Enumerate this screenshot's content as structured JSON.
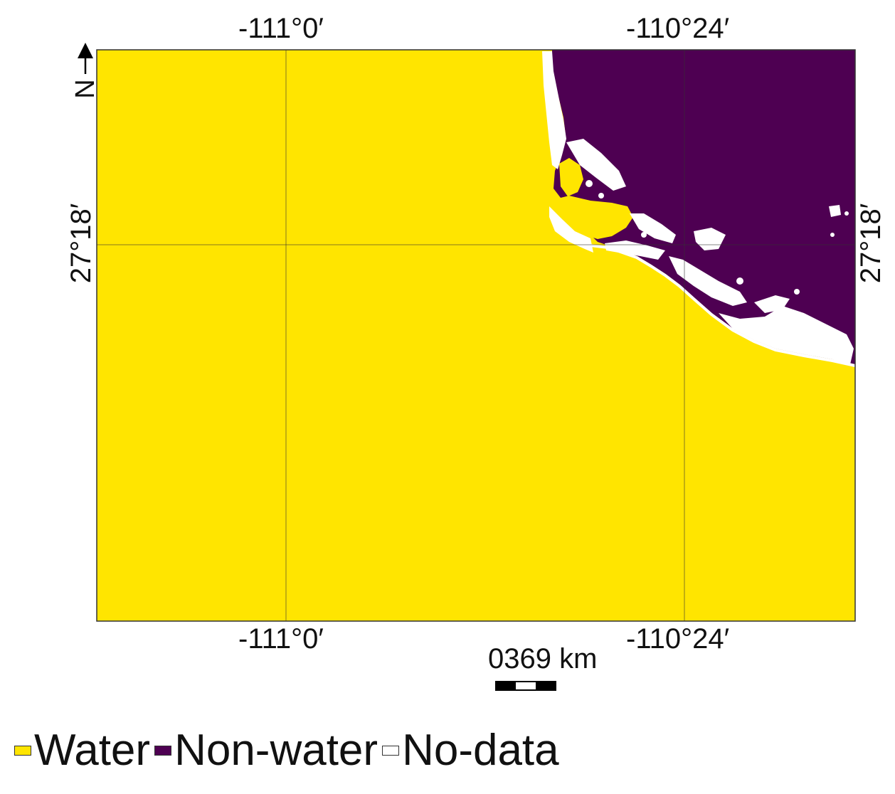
{
  "map": {
    "graticule": {
      "top_labels": [
        "-111°0′",
        "-110°24′"
      ],
      "bottom_labels": [
        "-111°0′",
        "-110°24′"
      ],
      "left_label": "27°18′",
      "right_label": "27°18′"
    },
    "north_arrow": {
      "label": "N"
    },
    "scale_bar": {
      "text": "0369 km"
    },
    "colors": {
      "water": "#FFE500",
      "non_water": "#4E0052",
      "no_data": "#FFFFFF"
    },
    "legend": [
      {
        "label": "Water",
        "color": "#FFE500"
      },
      {
        "label": "Non-water",
        "color": "#4E0052"
      },
      {
        "label": "No-data",
        "color": "#FFFFFF"
      }
    ]
  }
}
